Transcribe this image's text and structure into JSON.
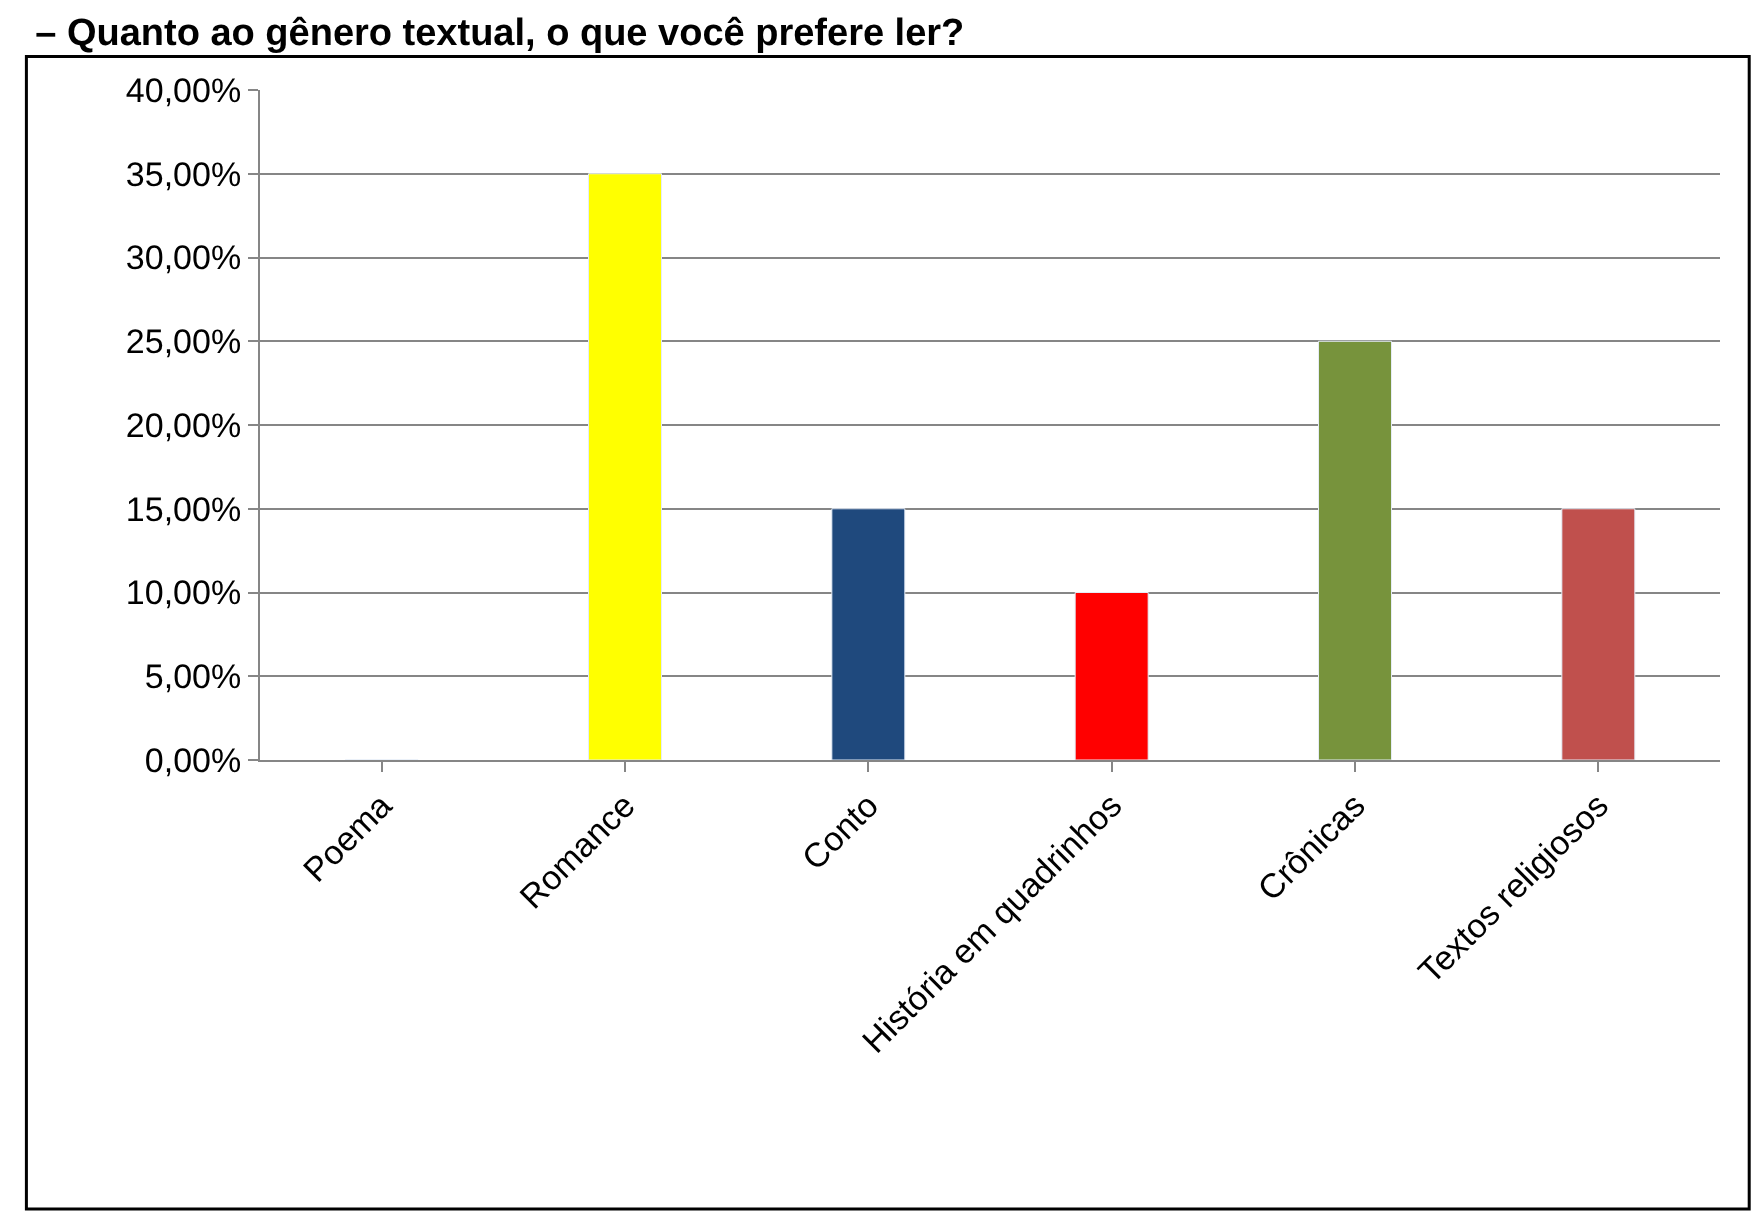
{
  "chart_data": {
    "type": "bar",
    "title": "– Quanto ao gênero textual, o que você prefere ler?",
    "categories": [
      "Poema",
      "Romance",
      "Conto",
      "História em quadrinhos",
      "Crônicas",
      "Textos religiosos"
    ],
    "values": [
      0,
      35,
      15,
      10,
      25,
      15
    ],
    "colors": [
      null,
      "#ffff00",
      "#1f497d",
      "#ff0000",
      "#77933c",
      "#c0504d"
    ],
    "ylim": [
      0,
      40
    ],
    "yticks": [
      {
        "value": 0,
        "label": "0,00%"
      },
      {
        "value": 5,
        "label": "5,00%"
      },
      {
        "value": 10,
        "label": "10,00%"
      },
      {
        "value": 15,
        "label": "15,00%"
      },
      {
        "value": 20,
        "label": "20,00%"
      },
      {
        "value": 25,
        "label": "25,00%"
      },
      {
        "value": 30,
        "label": "30,00%"
      },
      {
        "value": 35,
        "label": "35,00%"
      },
      {
        "value": 40,
        "label": "40,00%"
      }
    ],
    "grid": "y"
  }
}
